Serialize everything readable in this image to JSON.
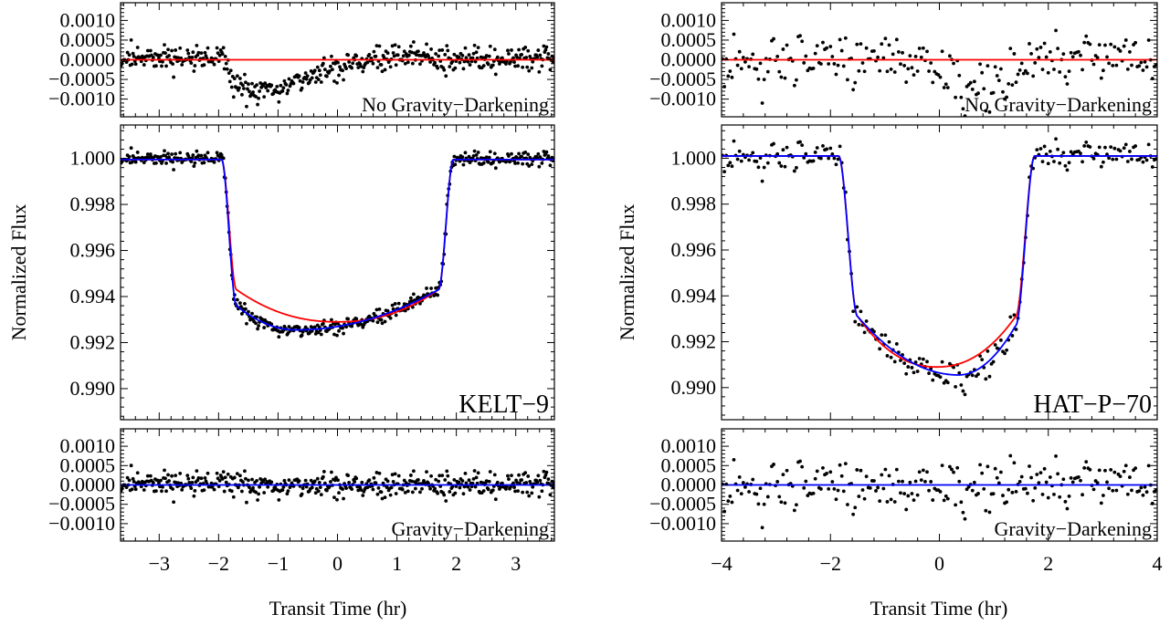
{
  "chart_data": [
    {
      "type": "scatter",
      "star": "KELT−9",
      "xlabel": "Transit Time (hr)",
      "ylabel": "Normalized Flux",
      "xlim": [
        -3.65,
        3.65
      ],
      "x_ticks": [
        -3,
        -2,
        -1,
        0,
        1,
        2,
        3
      ],
      "x_tick_labels": [
        "−3",
        "−2",
        "−1",
        "0",
        "1",
        "2",
        "3"
      ],
      "transit": {
        "ingress_start": -1.95,
        "ingress_end": -1.7,
        "egress_start": 1.7,
        "egress_end": 1.95,
        "baseline": 0.99995,
        "gd_bottom_at_neg1_7": 0.9936,
        "gd_min": 0.99255,
        "gd_min_x": -0.7,
        "gd_end_at_1_7": 0.9943,
        "nogd_bottom_edge": 0.9943,
        "nogd_center": 0.9929,
        "scatter": 0.00015
      },
      "panels": [
        {
          "name": "residuals-no-gravity-darkening",
          "label": "No Gravity−Darkening",
          "ylim": [
            -0.00145,
            0.00145
          ],
          "y_ticks": [
            -0.001,
            -0.0005,
            0.0,
            0.0005,
            0.001
          ],
          "y_tick_labels": [
            "−0.0010",
            "−0.0005",
            "0.0000",
            "0.0005",
            "0.0010"
          ],
          "model_color": "#ff0000"
        },
        {
          "name": "light-curve",
          "label": "KELT−9",
          "ylim": [
            0.98865,
            1.00145
          ],
          "y_ticks": [
            0.99,
            0.992,
            0.994,
            0.996,
            0.998,
            1.0
          ],
          "y_tick_labels": [
            "0.990",
            "0.992",
            "0.994",
            "0.996",
            "0.998",
            "1.000"
          ],
          "series": [
            {
              "name": "Gravity−Darkening",
              "color": "#0000ff"
            },
            {
              "name": "No Gravity−Darkening",
              "color": "#ff0000"
            }
          ]
        },
        {
          "name": "residuals-gravity-darkening",
          "label": "Gravity−Darkening",
          "ylim": [
            -0.00145,
            0.00145
          ],
          "y_ticks": [
            -0.001,
            -0.0005,
            0.0,
            0.0005,
            0.001
          ],
          "y_tick_labels": [
            "−0.0010",
            "−0.0005",
            "0.0000",
            "0.0005",
            "0.0010"
          ],
          "model_color": "#0000ff"
        }
      ]
    },
    {
      "type": "scatter",
      "star": "HAT−P−70",
      "xlabel": "Transit Time (hr)",
      "ylabel": "Normalized Flux",
      "xlim": [
        -4.0,
        4.0
      ],
      "x_ticks": [
        -4,
        -2,
        0,
        2,
        4
      ],
      "x_tick_labels": [
        "−4",
        "−2",
        "0",
        "2",
        "4"
      ],
      "transit": {
        "ingress_start": -1.85,
        "ingress_end": -1.5,
        "egress_start": 1.4,
        "egress_end": 1.75,
        "baseline": 1.0001,
        "gd_bottom_at_neg1_5": 0.9931,
        "gd_min": 0.99055,
        "gd_min_x": 0.35,
        "gd_end_at_1_4": 0.9927,
        "nogd_bottom_edge": 0.9931,
        "nogd_center": 0.9909,
        "scatter": 0.00035
      },
      "panels": [
        {
          "name": "residuals-no-gravity-darkening",
          "label": "No Gravity−Darkening",
          "ylim": [
            -0.00145,
            0.00145
          ],
          "y_ticks": [
            -0.001,
            -0.0005,
            0.0,
            0.0005,
            0.001
          ],
          "y_tick_labels": [
            "−0.0010",
            "−0.0005",
            "0.0000",
            "0.0005",
            "0.0010"
          ],
          "model_color": "#ff0000"
        },
        {
          "name": "light-curve",
          "label": "HAT−P−70",
          "ylim": [
            0.9886,
            1.00145
          ],
          "y_ticks": [
            0.99,
            0.992,
            0.994,
            0.996,
            0.998,
            1.0
          ],
          "y_tick_labels": [
            "0.990",
            "0.992",
            "0.994",
            "0.996",
            "0.998",
            "1.000"
          ],
          "series": [
            {
              "name": "Gravity−Darkening",
              "color": "#0000ff"
            },
            {
              "name": "No Gravity−Darkening",
              "color": "#ff0000"
            }
          ]
        },
        {
          "name": "residuals-gravity-darkening",
          "label": "Gravity−Darkening",
          "ylim": [
            -0.00145,
            0.00145
          ],
          "y_ticks": [
            -0.001,
            -0.0005,
            0.0,
            0.0005,
            0.001
          ],
          "y_tick_labels": [
            "−0.0010",
            "−0.0005",
            "0.0000",
            "0.0005",
            "0.0010"
          ],
          "model_color": "#0000ff"
        }
      ]
    }
  ]
}
